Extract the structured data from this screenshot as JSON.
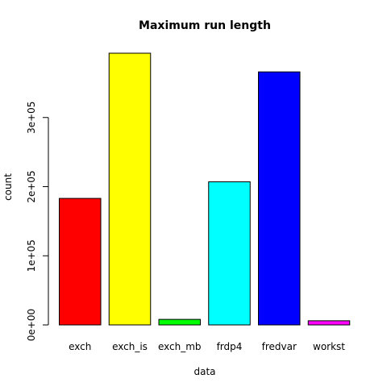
{
  "chart_data": {
    "type": "bar",
    "title": "Maximum run length",
    "xlabel": "data",
    "ylabel": "count",
    "categories": [
      "exch",
      "exch_is",
      "exch_mb",
      "frdp4",
      "fredvar",
      "workst"
    ],
    "values": [
      183000,
      393000,
      8000,
      207000,
      366000,
      6000
    ],
    "colors": [
      "#FF0000",
      "#FFFF00",
      "#00FF00",
      "#00FFFF",
      "#0000FF",
      "#FF00FF"
    ],
    "yticks": [
      0,
      100000,
      200000,
      300000
    ],
    "ytick_labels": [
      "0e+00",
      "1e+05",
      "2e+05",
      "3e+05"
    ],
    "ylim": [
      0,
      400000
    ],
    "grid": false,
    "legend": false
  }
}
